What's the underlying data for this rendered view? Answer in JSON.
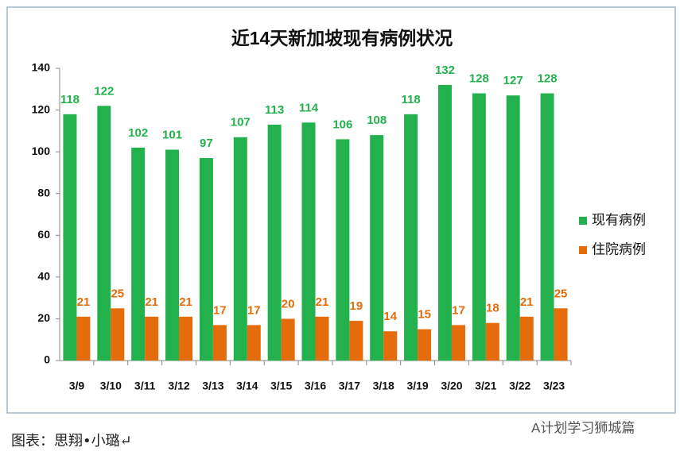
{
  "chart_data": {
    "type": "bar",
    "title": "近14天新加坡现有病例状况",
    "categories": [
      "3/9",
      "3/10",
      "3/11",
      "3/12",
      "3/13",
      "3/14",
      "3/15",
      "3/16",
      "3/17",
      "3/18",
      "3/19",
      "3/20",
      "3/21",
      "3/22",
      "3/23"
    ],
    "series": [
      {
        "name": "现有病例",
        "color": "#22b14c",
        "values": [
          118,
          122,
          102,
          101,
          97,
          107,
          113,
          114,
          106,
          108,
          118,
          132,
          128,
          127,
          128
        ]
      },
      {
        "name": "住院病例",
        "color": "#e46c0a",
        "values": [
          21,
          25,
          21,
          21,
          17,
          17,
          20,
          21,
          19,
          14,
          15,
          17,
          18,
          21,
          25
        ]
      }
    ],
    "ylim": [
      0,
      140
    ],
    "yticks": [
      0,
      20,
      40,
      60,
      80,
      100,
      120,
      140
    ],
    "legend": "right"
  },
  "caption": "图表：思翔•小璐↵",
  "watermark": "A计划学习狮城篇"
}
